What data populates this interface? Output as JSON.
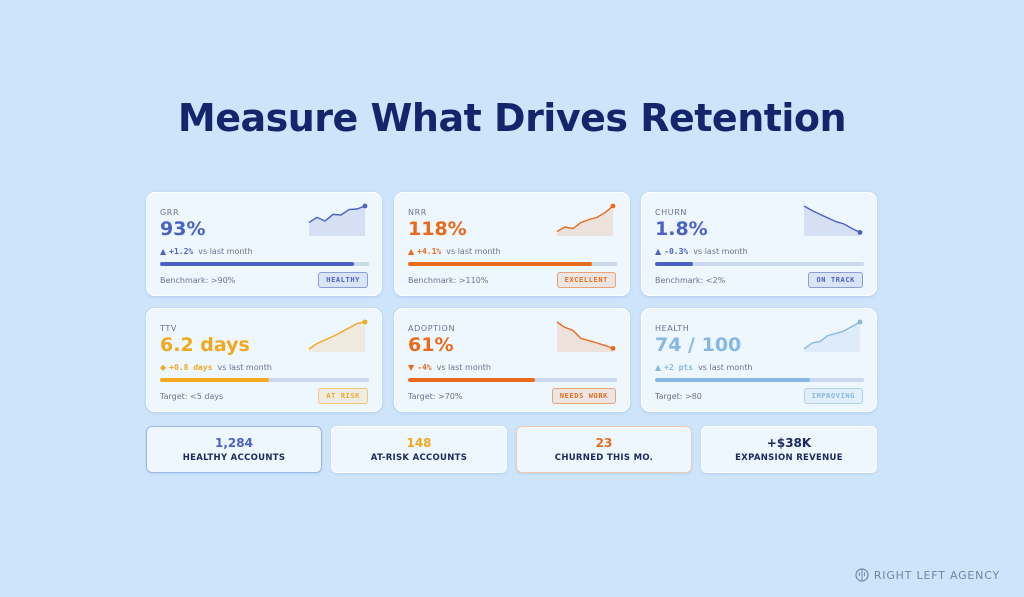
{
  "title": "Measure What Drives Retention",
  "colors": {
    "blue": "#4a62c4",
    "orange": "#ea6a1c",
    "amber": "#f2a81f",
    "light_blue": "#86b8e3",
    "background": "#cde4fb"
  },
  "cards": [
    {
      "label": "GRR",
      "value": "93%",
      "arrow": "▲",
      "delta": "+1.2%",
      "delta_note": "vs last month",
      "progress": 0.93,
      "bench": "Benchmark: >90%",
      "badge": "HEALTHY",
      "color": "#4a62c4",
      "trend": [
        0.45,
        0.62,
        0.5,
        0.72,
        0.7,
        0.88,
        0.9,
        1.0
      ]
    },
    {
      "label": "NRR",
      "value": "118%",
      "arrow": "▲",
      "delta": "+4.1%",
      "delta_note": "vs last month",
      "progress": 0.88,
      "bench": "Benchmark: >110%",
      "badge": "EXCELLENT",
      "color": "#ea6a1c",
      "trend": [
        0.15,
        0.3,
        0.25,
        0.45,
        0.55,
        0.62,
        0.78,
        1.0
      ]
    },
    {
      "label": "CHURN",
      "value": "1.8%",
      "arrow": "▲",
      "delta": "-0.3%",
      "delta_note": "vs last month",
      "progress": 0.18,
      "bench": "Benchmark: <2%",
      "badge": "ON TRACK",
      "color": "#4a62c4",
      "trend": [
        1.0,
        0.85,
        0.72,
        0.6,
        0.48,
        0.4,
        0.25,
        0.12
      ]
    },
    {
      "label": "TTV",
      "value": "6.2 days",
      "arrow": "◆",
      "delta": "+0.8 days",
      "delta_note": "vs last month",
      "progress": 0.52,
      "bench": "Target: <5 days",
      "badge": "AT RISK",
      "color": "#f2a81f",
      "trend": [
        0.1,
        0.28,
        0.4,
        0.52,
        0.66,
        0.8,
        0.95,
        1.0
      ]
    },
    {
      "label": "ADOPTION",
      "value": "61%",
      "arrow": "▼",
      "delta": "-4%",
      "delta_note": "vs last month",
      "progress": 0.61,
      "bench": "Target: >70%",
      "badge": "NEEDS WORK",
      "color": "#ea6a1c",
      "trend": [
        1.0,
        0.82,
        0.72,
        0.45,
        0.38,
        0.3,
        0.22,
        0.12
      ]
    },
    {
      "label": "HEALTH",
      "value": "74 / 100",
      "arrow": "▲",
      "delta": "+2 pts",
      "delta_note": "vs last month",
      "progress": 0.74,
      "bench": "Target: >80",
      "badge": "IMPROVING",
      "color": "#86b8e3",
      "trend": [
        0.1,
        0.3,
        0.35,
        0.55,
        0.62,
        0.7,
        0.85,
        1.0
      ]
    }
  ],
  "stats": [
    {
      "value": "1,284",
      "label": "HEALTHY ACCOUNTS",
      "color": "#4a62c4"
    },
    {
      "value": "148",
      "label": "AT-RISK ACCOUNTS",
      "color": "#f2a81f"
    },
    {
      "value": "23",
      "label": "CHURNED THIS MO.",
      "color": "#ea6a1c"
    },
    {
      "value": "+$38K",
      "label": "EXPANSION REVENUE",
      "color": "#1b2a5e"
    }
  ],
  "brand": {
    "name": "RIGHT LEFT AGENCY",
    "icon": "brain-icon"
  }
}
